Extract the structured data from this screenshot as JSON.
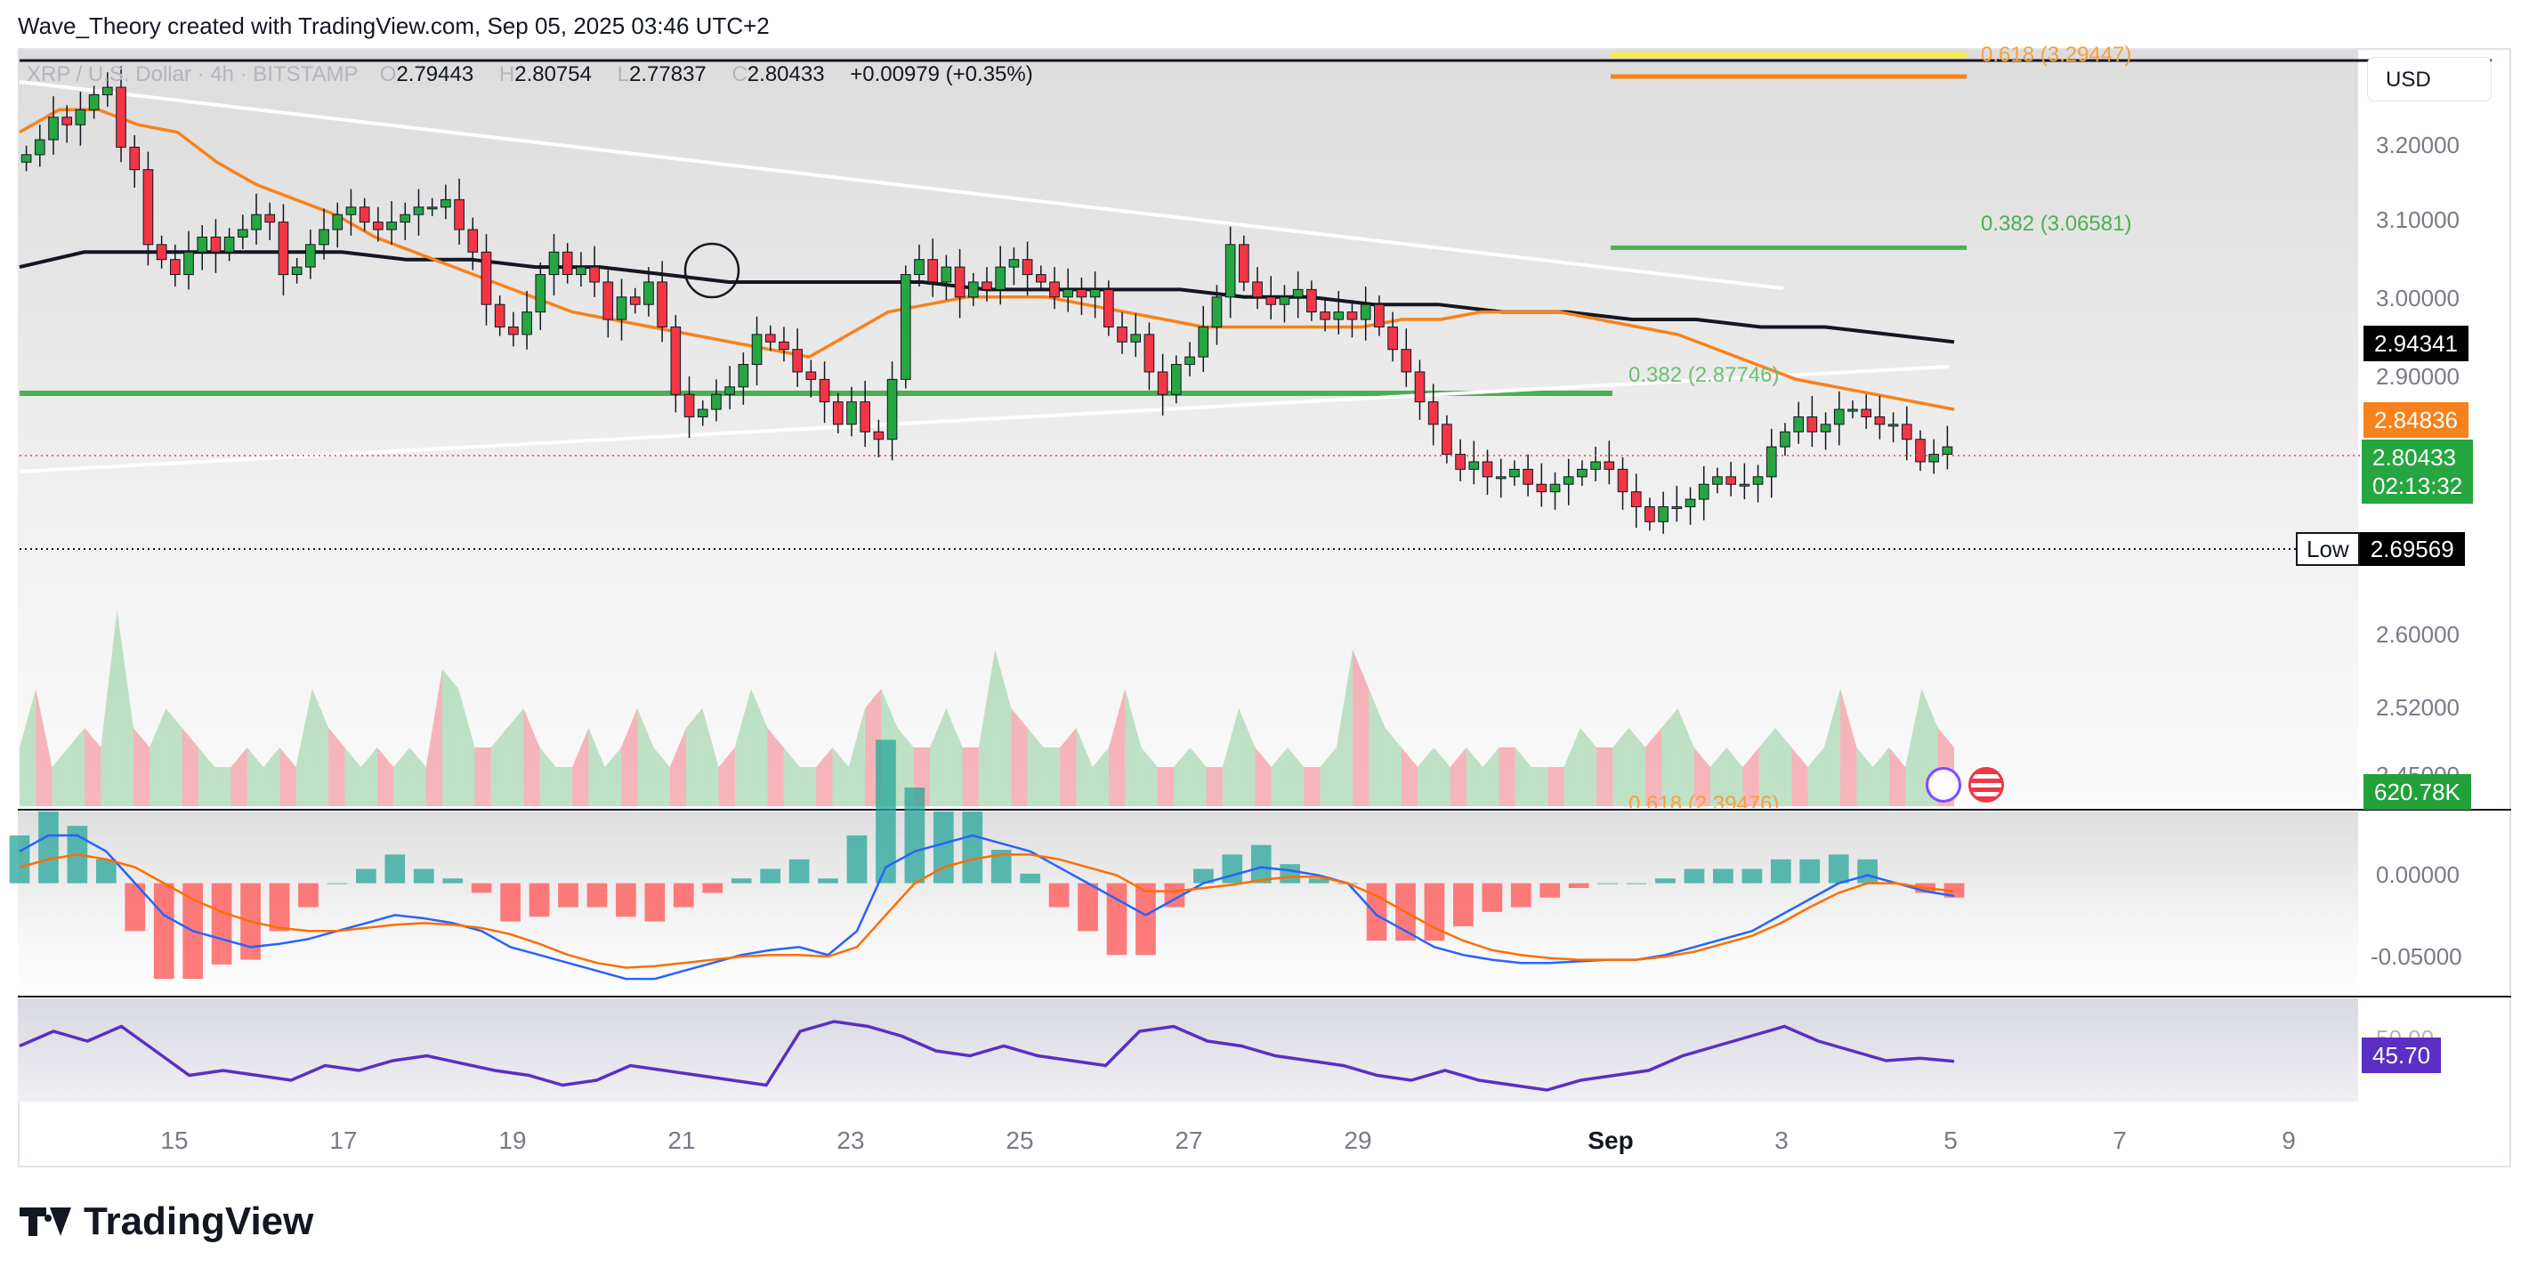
{
  "header": {
    "credit": "Wave_Theory created with TradingView.com, Sep 05, 2025 03:46 UTC+2"
  },
  "legend": {
    "symbol": "XRP / U.S. Dollar · 4h · BITSTAMP",
    "open_label": "O",
    "open": "2.79443",
    "high_label": "H",
    "high": "2.80754",
    "low_label": "L",
    "low": "2.77837",
    "close_label": "C",
    "close": "2.80433",
    "change": "+0.00979 (+0.35%)"
  },
  "currency_button": "USD",
  "price_axis": {
    "ticks": [
      "3.20000",
      "3.10000",
      "3.00000",
      "2.90000",
      "2.60000",
      "2.52000",
      "2.45000"
    ]
  },
  "price_tags": {
    "sma200": "2.94341",
    "ema50": "2.84836",
    "last_price": "2.80433",
    "countdown": "02:13:32",
    "low_label": "Low",
    "low_value": "2.69569",
    "volume": "620.78K"
  },
  "macd_axis": {
    "ticks": [
      "0.00000",
      "-0.05000"
    ]
  },
  "rsi": {
    "value": "45.70",
    "partial_tick": "50.00"
  },
  "fib_labels": {
    "upper_618": "0.618 (3.29447)",
    "upper_382": "0.382 (3.06581)",
    "mid_382": "0.382 (2.87746)",
    "lower_618": "0.618 (2.39476)"
  },
  "date_axis": [
    "15",
    "17",
    "19",
    "21",
    "23",
    "25",
    "27",
    "29",
    "Sep",
    "3",
    "5",
    "7",
    "9"
  ],
  "brand": {
    "name": "TradingView"
  },
  "colors": {
    "up": "#26a641",
    "down": "#f23645",
    "ema": "#f7821b",
    "sma": "#131722",
    "fib_green": "#4caf50",
    "fib_yellow": "#ffeb3b",
    "macd": "#2962ff",
    "signal": "#ff6d00",
    "rsi": "#5b2ec4"
  },
  "chart_data": {
    "type": "candlestick",
    "symbol": "XRP / U.S. Dollar",
    "interval": "4h",
    "exchange": "BITSTAMP",
    "y_range": [
      2.39,
      3.32
    ],
    "x_day_ticks": [
      "15",
      "17",
      "19",
      "21",
      "23",
      "25",
      "27",
      "29",
      "Sep",
      "3",
      "5",
      "7",
      "9"
    ],
    "closes": [
      3.19,
      3.21,
      3.24,
      3.23,
      3.25,
      3.27,
      3.28,
      3.2,
      3.17,
      3.07,
      3.05,
      3.03,
      3.06,
      3.08,
      3.06,
      3.08,
      3.09,
      3.11,
      3.1,
      3.03,
      3.04,
      3.07,
      3.09,
      3.11,
      3.12,
      3.1,
      3.09,
      3.1,
      3.11,
      3.12,
      3.12,
      3.13,
      3.09,
      3.06,
      2.99,
      2.96,
      2.95,
      2.98,
      3.03,
      3.06,
      3.03,
      3.04,
      3.02,
      2.97,
      3.0,
      2.99,
      3.02,
      2.96,
      2.87,
      2.84,
      2.85,
      2.87,
      2.88,
      2.91,
      2.95,
      2.94,
      2.93,
      2.9,
      2.89,
      2.86,
      2.83,
      2.86,
      2.82,
      2.81,
      2.89,
      3.03,
      3.05,
      3.02,
      3.04,
      3.0,
      3.02,
      3.01,
      3.04,
      3.05,
      3.03,
      3.02,
      3.0,
      3.01,
      3.0,
      3.01,
      2.96,
      2.94,
      2.95,
      2.9,
      2.87,
      2.91,
      2.92,
      2.96,
      3.0,
      3.07,
      3.02,
      3.0,
      2.99,
      3.0,
      3.01,
      2.98,
      2.97,
      2.98,
      2.97,
      2.99,
      2.96,
      2.93,
      2.9,
      2.86,
      2.83,
      2.79,
      2.77,
      2.78,
      2.76,
      2.76,
      2.77,
      2.75,
      2.74,
      2.75,
      2.76,
      2.77,
      2.78,
      2.77,
      2.74,
      2.72,
      2.7,
      2.72,
      2.72,
      2.73,
      2.75,
      2.76,
      2.75,
      2.75,
      2.76,
      2.8,
      2.82,
      2.84,
      2.82,
      2.83,
      2.85,
      2.85,
      2.84,
      2.83,
      2.83,
      2.81,
      2.78,
      2.79,
      2.8
    ],
    "ema50": [
      3.22,
      3.25,
      3.25,
      3.23,
      3.22,
      3.18,
      3.15,
      3.13,
      3.11,
      3.08,
      3.06,
      3.04,
      3.02,
      3.0,
      2.98,
      2.97,
      2.96,
      2.95,
      2.94,
      2.93,
      2.92,
      2.95,
      2.98,
      2.99,
      3.0,
      3.0,
      3.0,
      2.99,
      2.98,
      2.97,
      2.96,
      2.96,
      2.96,
      2.96,
      2.96,
      2.97,
      2.97,
      2.98,
      2.98,
      2.98,
      2.97,
      2.96,
      2.95,
      2.93,
      2.91,
      2.89,
      2.88,
      2.87,
      2.86,
      2.85
    ],
    "sma200": [
      3.04,
      3.06,
      3.06,
      3.06,
      3.06,
      3.06,
      3.05,
      3.05,
      3.04,
      3.04,
      3.03,
      3.02,
      3.02,
      3.02,
      3.02,
      3.01,
      3.01,
      3.01,
      3.01,
      3.0,
      3.0,
      2.99,
      2.99,
      2.98,
      2.98,
      2.97,
      2.97,
      2.96,
      2.96,
      2.95,
      2.94
    ],
    "trendlines": {
      "descending_resistance": [
        [
          0,
          3.27
        ],
        [
          0.68,
          3.01
        ]
      ],
      "ascending_support": [
        [
          0,
          2.79
        ],
        [
          0.77,
          2.91
        ]
      ]
    },
    "fib_levels": [
      {
        "label": "0.618 (3.29447)",
        "price": 3.29447,
        "color": "#ffeb3b"
      },
      {
        "label": "0.382 (3.06581)",
        "price": 3.06581,
        "color": "#4caf50"
      },
      {
        "label": "0.382 (2.87746)",
        "price": 2.87746,
        "color": "#4caf50"
      },
      {
        "label": "0.618 (2.39476)",
        "price": 2.39476,
        "color": "#f7821b"
      }
    ],
    "support_zone": [
      2.87746
    ],
    "low_marker": 2.69569,
    "volume": [
      0.3,
      0.6,
      0.2,
      0.3,
      0.4,
      0.3,
      1.0,
      0.4,
      0.3,
      0.5,
      0.4,
      0.3,
      0.2,
      0.2,
      0.3,
      0.2,
      0.3,
      0.2,
      0.6,
      0.4,
      0.3,
      0.2,
      0.3,
      0.2,
      0.3,
      0.2,
      0.7,
      0.6,
      0.3,
      0.3,
      0.4,
      0.5,
      0.3,
      0.2,
      0.2,
      0.4,
      0.2,
      0.3,
      0.5,
      0.3,
      0.2,
      0.4,
      0.5,
      0.2,
      0.3,
      0.6,
      0.4,
      0.3,
      0.2,
      0.2,
      0.3,
      0.2,
      0.5,
      0.6,
      0.4,
      0.3,
      0.3,
      0.5,
      0.3,
      0.3,
      0.8,
      0.5,
      0.4,
      0.3,
      0.3,
      0.4,
      0.2,
      0.3,
      0.6,
      0.3,
      0.2,
      0.2,
      0.3,
      0.2,
      0.2,
      0.5,
      0.3,
      0.2,
      0.3,
      0.2,
      0.2,
      0.3,
      0.8,
      0.6,
      0.4,
      0.3,
      0.2,
      0.3,
      0.2,
      0.3,
      0.2,
      0.3,
      0.3,
      0.2,
      0.2,
      0.2,
      0.4,
      0.3,
      0.3,
      0.4,
      0.3,
      0.4,
      0.5,
      0.3,
      0.2,
      0.3,
      0.2,
      0.3,
      0.4,
      0.3,
      0.2,
      0.3,
      0.6,
      0.3,
      0.2,
      0.3,
      0.2,
      0.6,
      0.4,
      0.3
    ],
    "macd": [
      0.02,
      0.03,
      0.03,
      0.02,
      0.0,
      -0.02,
      -0.03,
      -0.035,
      -0.04,
      -0.038,
      -0.035,
      -0.03,
      -0.025,
      -0.02,
      -0.022,
      -0.025,
      -0.03,
      -0.04,
      -0.045,
      -0.05,
      -0.055,
      -0.06,
      -0.06,
      -0.055,
      -0.05,
      -0.045,
      -0.042,
      -0.04,
      -0.045,
      -0.03,
      0.01,
      0.02,
      0.025,
      0.03,
      0.025,
      0.02,
      0.01,
      0.0,
      -0.01,
      -0.02,
      -0.01,
      0.0,
      0.005,
      0.01,
      0.008,
      0.005,
      0.0,
      -0.02,
      -0.03,
      -0.04,
      -0.045,
      -0.048,
      -0.05,
      -0.05,
      -0.049,
      -0.048,
      -0.048,
      -0.045,
      -0.04,
      -0.035,
      -0.03,
      -0.02,
      -0.01,
      0.0,
      0.005,
      0.0,
      -0.005,
      -0.008
    ],
    "macd_signal": [
      0.01,
      0.015,
      0.018,
      0.015,
      0.01,
      0.0,
      -0.01,
      -0.018,
      -0.024,
      -0.028,
      -0.03,
      -0.03,
      -0.028,
      -0.026,
      -0.025,
      -0.026,
      -0.028,
      -0.032,
      -0.038,
      -0.045,
      -0.05,
      -0.053,
      -0.052,
      -0.05,
      -0.048,
      -0.046,
      -0.045,
      -0.045,
      -0.046,
      -0.04,
      -0.02,
      0.0,
      0.01,
      0.015,
      0.018,
      0.018,
      0.015,
      0.01,
      0.005,
      -0.005,
      -0.005,
      -0.003,
      -0.001,
      0.002,
      0.004,
      0.004,
      0.0,
      -0.008,
      -0.018,
      -0.028,
      -0.036,
      -0.042,
      -0.045,
      -0.047,
      -0.048,
      -0.048,
      -0.048,
      -0.046,
      -0.043,
      -0.038,
      -0.033,
      -0.025,
      -0.015,
      -0.006,
      0.0,
      0.0,
      -0.003,
      -0.005
    ],
    "rsi": [
      52,
      58,
      54,
      60,
      50,
      40,
      42,
      40,
      38,
      44,
      42,
      46,
      48,
      45,
      42,
      40,
      36,
      38,
      44,
      42,
      40,
      38,
      36,
      58,
      62,
      60,
      56,
      50,
      48,
      52,
      48,
      46,
      44,
      58,
      60,
      54,
      52,
      48,
      46,
      44,
      40,
      38,
      42,
      38,
      36,
      34,
      38,
      40,
      42,
      48,
      52,
      56,
      60,
      54,
      50,
      46,
      47,
      45.7
    ],
    "ylabel": "",
    "xlabel": ""
  }
}
